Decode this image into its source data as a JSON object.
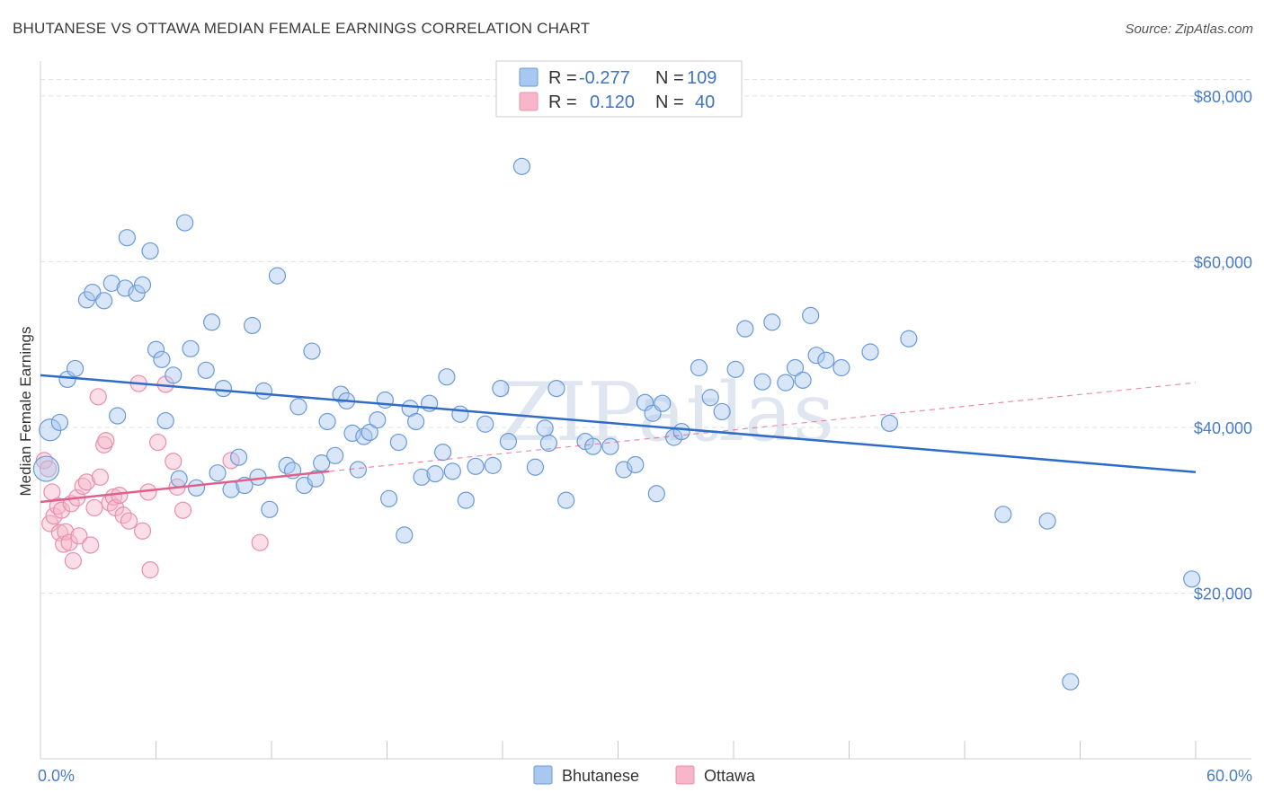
{
  "title": "BHUTANESE VS OTTAWA MEDIAN FEMALE EARNINGS CORRELATION CHART",
  "source": "Source: ZipAtlas.com",
  "watermark": "ZIPatlas",
  "colors": {
    "bhutanese_fill": "#a9c8f0",
    "bhutanese_stroke": "#6a9ad8",
    "bhutanese_line": "#2f6cc8",
    "ottawa_fill": "#f7b6c9",
    "ottawa_stroke": "#e890ab",
    "ottawa_line": "#e0608c",
    "grid": "#dde3ea",
    "tick_label": "#4a7cc4"
  },
  "legend": {
    "rows": [
      {
        "r_label": "R =",
        "r_value": "-0.277",
        "n_label": "N =",
        "n_value": "109"
      },
      {
        "r_label": "R =",
        "r_value": "0.120",
        "n_label": "N =",
        "n_value": "40"
      }
    ]
  },
  "chart_data": {
    "type": "scatter",
    "title": "BHUTANESE VS OTTAWA MEDIAN FEMALE EARNINGS CORRELATION CHART",
    "xlabel": "",
    "ylabel": "Median Female Earnings",
    "xlim": [
      0,
      60
    ],
    "ylim": [
      0,
      84000
    ],
    "x_tick_labels": [
      "0.0%",
      "60.0%"
    ],
    "y_ticks": [
      20000,
      40000,
      60000,
      80000
    ],
    "y_tick_labels": [
      "$20,000",
      "$40,000",
      "$60,000",
      "$80,000"
    ],
    "grid": true,
    "legend_position": "top-center",
    "series": [
      {
        "name": "Bhutanese",
        "trend": {
          "x": [
            0,
            60
          ],
          "y": [
            46300,
            34600
          ]
        },
        "points": [
          [
            0.3,
            35000
          ],
          [
            0.5,
            39700
          ],
          [
            1.0,
            40600
          ],
          [
            1.4,
            45800
          ],
          [
            1.8,
            47100
          ],
          [
            2.4,
            55400
          ],
          [
            2.7,
            56300
          ],
          [
            3.3,
            55300
          ],
          [
            3.7,
            57400
          ],
          [
            4.0,
            41400
          ],
          [
            4.5,
            62900
          ],
          [
            4.4,
            56800
          ],
          [
            5.0,
            56200
          ],
          [
            5.3,
            57200
          ],
          [
            5.7,
            61300
          ],
          [
            6.0,
            49400
          ],
          [
            6.3,
            48200
          ],
          [
            6.5,
            40800
          ],
          [
            6.9,
            46300
          ],
          [
            7.2,
            33800
          ],
          [
            7.5,
            64700
          ],
          [
            7.8,
            49500
          ],
          [
            8.1,
            32700
          ],
          [
            8.6,
            46900
          ],
          [
            8.9,
            52700
          ],
          [
            9.2,
            34500
          ],
          [
            9.5,
            44700
          ],
          [
            9.9,
            32500
          ],
          [
            10.3,
            36400
          ],
          [
            10.6,
            33000
          ],
          [
            11.0,
            52300
          ],
          [
            11.3,
            34000
          ],
          [
            11.6,
            44400
          ],
          [
            11.9,
            30100
          ],
          [
            12.3,
            58300
          ],
          [
            12.8,
            35400
          ],
          [
            13.1,
            34800
          ],
          [
            13.4,
            42500
          ],
          [
            13.7,
            33000
          ],
          [
            14.1,
            49200
          ],
          [
            14.3,
            33800
          ],
          [
            14.6,
            35700
          ],
          [
            14.9,
            40700
          ],
          [
            15.3,
            36600
          ],
          [
            15.6,
            44000
          ],
          [
            15.9,
            43200
          ],
          [
            16.2,
            39300
          ],
          [
            16.5,
            34900
          ],
          [
            16.8,
            38900
          ],
          [
            17.1,
            39400
          ],
          [
            17.5,
            40900
          ],
          [
            17.9,
            43300
          ],
          [
            18.1,
            31400
          ],
          [
            18.6,
            38200
          ],
          [
            18.9,
            27000
          ],
          [
            19.2,
            42300
          ],
          [
            19.5,
            40700
          ],
          [
            19.8,
            34000
          ],
          [
            20.2,
            42900
          ],
          [
            20.5,
            34400
          ],
          [
            20.9,
            37000
          ],
          [
            21.1,
            46100
          ],
          [
            21.4,
            34700
          ],
          [
            21.8,
            41600
          ],
          [
            22.1,
            31200
          ],
          [
            22.6,
            35300
          ],
          [
            23.1,
            40400
          ],
          [
            23.5,
            35400
          ],
          [
            23.9,
            44700
          ],
          [
            24.3,
            38300
          ],
          [
            25.0,
            71500
          ],
          [
            25.7,
            35200
          ],
          [
            26.2,
            39900
          ],
          [
            26.4,
            38100
          ],
          [
            26.8,
            44700
          ],
          [
            27.3,
            31200
          ],
          [
            28.3,
            38300
          ],
          [
            28.7,
            37700
          ],
          [
            29.6,
            37700
          ],
          [
            30.3,
            34900
          ],
          [
            30.9,
            35500
          ],
          [
            31.4,
            43000
          ],
          [
            31.8,
            41700
          ],
          [
            32.0,
            32000
          ],
          [
            32.3,
            42900
          ],
          [
            32.9,
            38800
          ],
          [
            33.3,
            39500
          ],
          [
            34.2,
            47200
          ],
          [
            34.8,
            43600
          ],
          [
            35.4,
            41900
          ],
          [
            36.1,
            47000
          ],
          [
            36.6,
            51900
          ],
          [
            37.5,
            45500
          ],
          [
            38.0,
            52700
          ],
          [
            38.7,
            45400
          ],
          [
            39.2,
            47200
          ],
          [
            39.6,
            45700
          ],
          [
            40.0,
            53500
          ],
          [
            40.3,
            48700
          ],
          [
            40.8,
            48100
          ],
          [
            41.6,
            47200
          ],
          [
            43.1,
            49100
          ],
          [
            44.1,
            40500
          ],
          [
            45.1,
            50700
          ],
          [
            50.0,
            29500
          ],
          [
            52.3,
            28700
          ],
          [
            53.5,
            9300
          ],
          [
            59.8,
            21700
          ]
        ]
      },
      {
        "name": "Ottawa",
        "trend": {
          "x": [
            0,
            15
          ],
          "y": [
            31000,
            34700
          ]
        },
        "trend_extension": {
          "x": [
            15,
            60
          ],
          "y": [
            34700,
            45400
          ]
        },
        "points": [
          [
            0.2,
            36000
          ],
          [
            0.4,
            35000
          ],
          [
            0.5,
            28400
          ],
          [
            0.6,
            32200
          ],
          [
            0.7,
            29300
          ],
          [
            0.9,
            30500
          ],
          [
            1.0,
            27300
          ],
          [
            1.1,
            30000
          ],
          [
            1.2,
            25900
          ],
          [
            1.3,
            27400
          ],
          [
            1.5,
            26100
          ],
          [
            1.6,
            30800
          ],
          [
            1.7,
            23900
          ],
          [
            1.9,
            31500
          ],
          [
            2.0,
            26900
          ],
          [
            2.2,
            32900
          ],
          [
            2.4,
            33400
          ],
          [
            2.6,
            25800
          ],
          [
            2.8,
            30300
          ],
          [
            3.0,
            43700
          ],
          [
            3.1,
            34000
          ],
          [
            3.3,
            37900
          ],
          [
            3.4,
            38400
          ],
          [
            3.6,
            30900
          ],
          [
            3.8,
            31600
          ],
          [
            3.9,
            30300
          ],
          [
            4.1,
            31800
          ],
          [
            4.3,
            29400
          ],
          [
            4.6,
            28700
          ],
          [
            5.1,
            45300
          ],
          [
            5.3,
            27500
          ],
          [
            5.6,
            32200
          ],
          [
            5.7,
            22800
          ],
          [
            6.1,
            38200
          ],
          [
            6.5,
            45200
          ],
          [
            6.9,
            35900
          ],
          [
            7.1,
            32800
          ],
          [
            7.4,
            30000
          ],
          [
            9.9,
            36000
          ],
          [
            11.4,
            26100
          ]
        ]
      }
    ]
  },
  "bottom_legend": {
    "items": [
      {
        "label": "Bhutanese"
      },
      {
        "label": "Ottawa"
      }
    ]
  }
}
